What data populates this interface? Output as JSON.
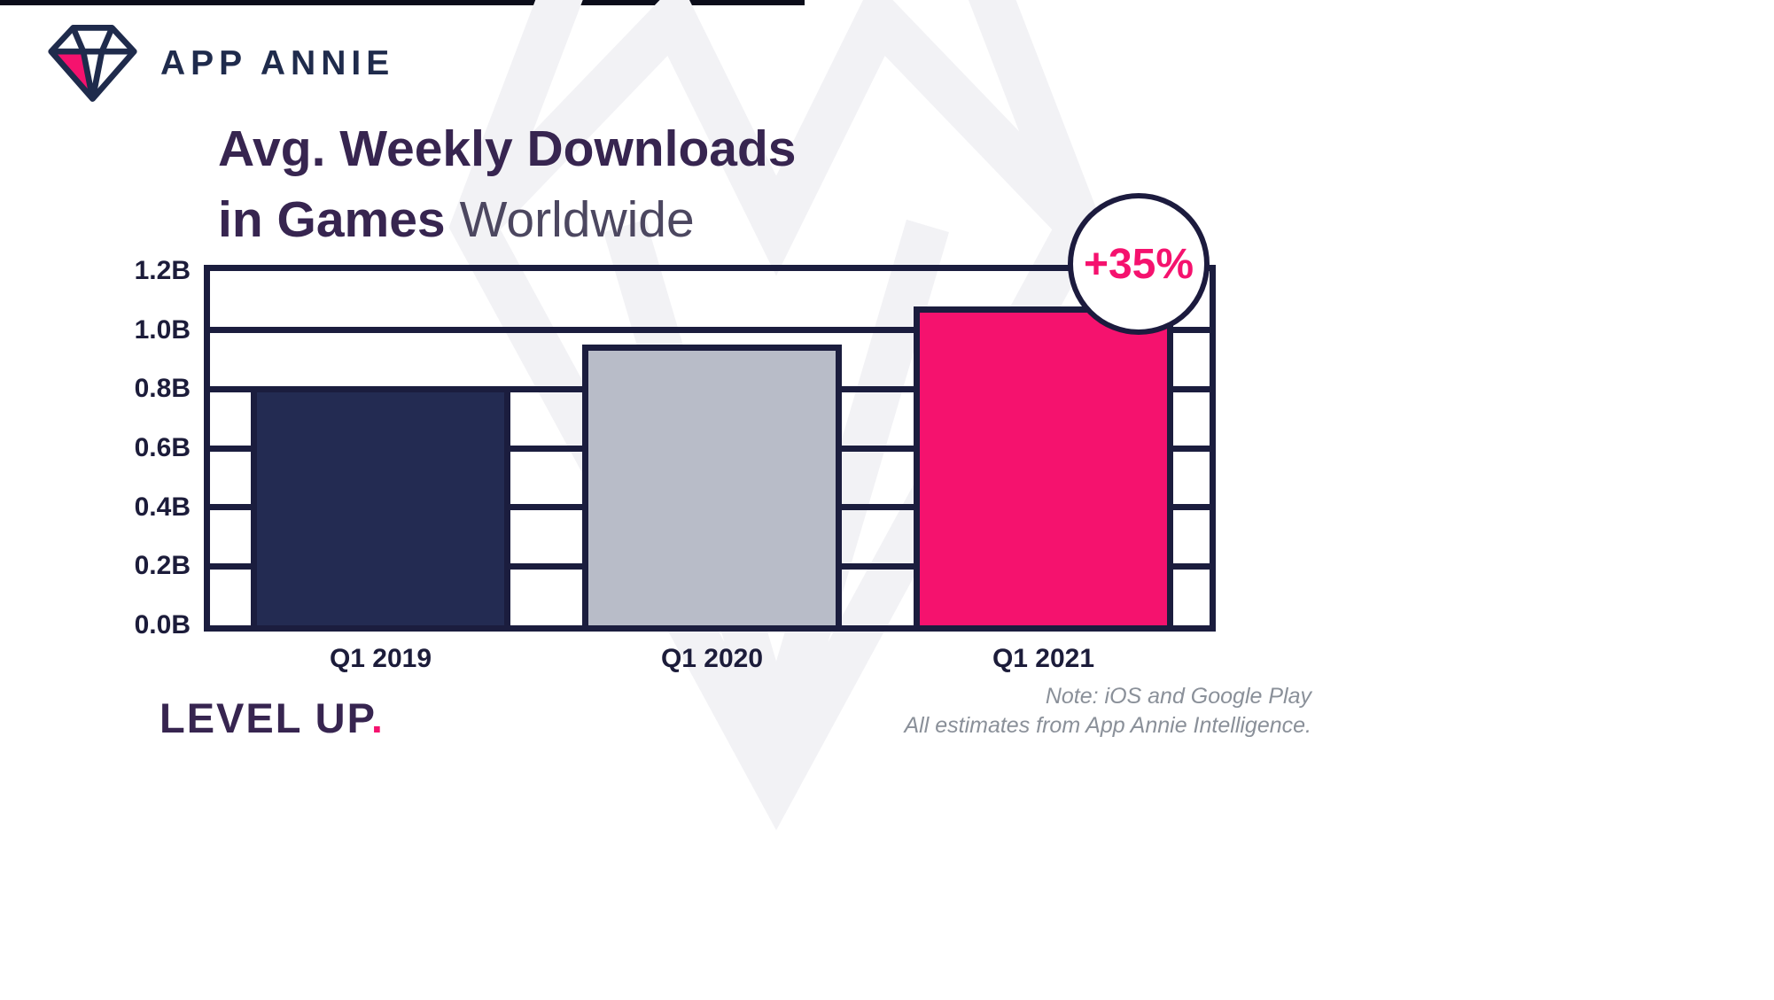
{
  "header": {
    "brand": "APP ANNIE"
  },
  "title": {
    "line1": "Avg. Weekly Downloads",
    "line2_bold": "in Games",
    "line2_light": "Worldwide"
  },
  "badge": {
    "label": "+35%"
  },
  "footer": {
    "tagline": "LEVEL UP",
    "tagline_period": ".",
    "note_line1": "Note: iOS and Google Play",
    "note_line2": "All estimates from App Annie Intelligence."
  },
  "colors": {
    "navy_line": "#1b1d3e",
    "brand_navy": "#1f2b4c",
    "title_purple": "#372550",
    "pink": "#f5126e",
    "bar_navy": "#232b52",
    "bar_gray": "#b8bcc8",
    "watermark": "#f2f2f5"
  },
  "chart_data": {
    "type": "bar",
    "title": "Avg. Weekly Downloads in Games Worldwide",
    "categories": [
      "Q1 2019",
      "Q1 2020",
      "Q1 2021"
    ],
    "values": [
      0.81,
      0.95,
      1.08
    ],
    "unit": "B",
    "ylim": [
      0,
      1.2
    ],
    "ytick_step": 0.2,
    "ytick_labels": [
      "0.0B",
      "0.2B",
      "0.4B",
      "0.6B",
      "0.8B",
      "1.0B",
      "1.2B"
    ],
    "bar_colors": [
      "#232b52",
      "#b8bcc8",
      "#f5126e"
    ],
    "grid": true,
    "legend": false,
    "annotation": "+35%"
  }
}
